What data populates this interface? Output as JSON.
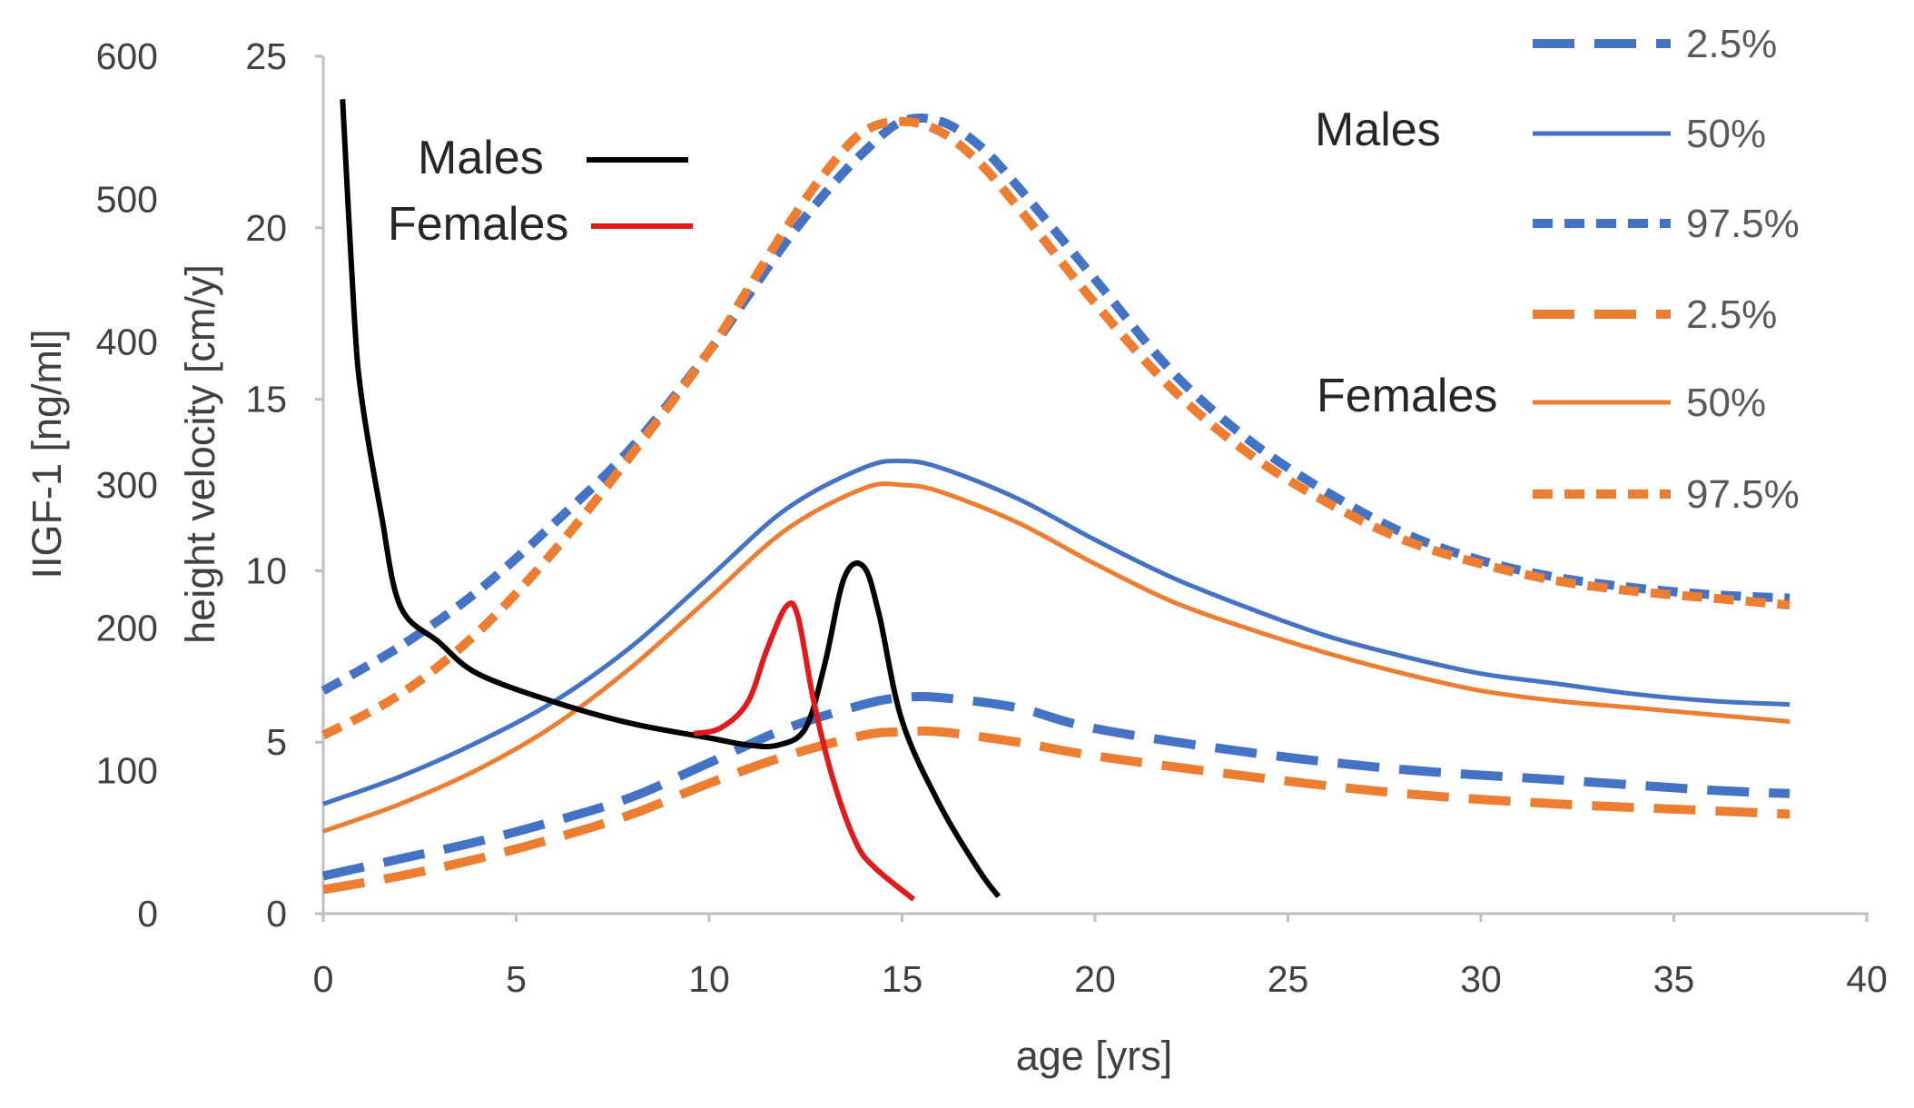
{
  "colors": {
    "blue": "#4472C4",
    "orange": "#ED7D31",
    "black": "#000000",
    "red": "#E31A1C",
    "axis": "#BFBFBF"
  },
  "chart_data": {
    "type": "line",
    "title": "",
    "xlabel": "age [yrs]",
    "ylabel_left": "IIGF-1 [ng/ml]",
    "ylabel_right": "height velocity [cm/y]",
    "xlim": [
      0,
      40
    ],
    "xticks": [
      "0",
      "5",
      "10",
      "15",
      "20",
      "25",
      "30",
      "35",
      "40"
    ],
    "ylim_left": [
      0,
      600
    ],
    "yticks_left": [
      "0",
      "100",
      "200",
      "300",
      "400",
      "500",
      "600"
    ],
    "ylim_right": [
      0,
      25
    ],
    "yticks_right": [
      "0",
      "5",
      "10",
      "15",
      "20",
      "25"
    ],
    "grid": false,
    "legend_igf": {
      "males": "Males",
      "females": "Females"
    },
    "legend_velocity": {
      "males": "Males",
      "females": "Females",
      "items": [
        {
          "label": "2.5%",
          "color": "blue",
          "style": "long-dash"
        },
        {
          "label": "50%",
          "color": "blue",
          "style": "solid"
        },
        {
          "label": "97.5%",
          "color": "blue",
          "style": "short-dash"
        },
        {
          "label": "2.5%",
          "color": "orange",
          "style": "long-dash"
        },
        {
          "label": "50%",
          "color": "orange",
          "style": "solid"
        },
        {
          "label": "97.5%",
          "color": "orange",
          "style": "short-dash"
        }
      ]
    },
    "series": [
      {
        "name": "Males 2.5%",
        "axis": "velocity",
        "color": "blue",
        "style": "long-dash",
        "x": [
          0,
          2,
          4,
          6,
          8,
          10,
          12,
          14,
          15,
          16,
          18,
          20,
          24,
          28,
          32,
          36,
          38
        ],
        "y": [
          1.1,
          1.6,
          2.1,
          2.7,
          3.4,
          4.4,
          5.4,
          6.1,
          6.3,
          6.3,
          6.0,
          5.4,
          4.7,
          4.2,
          3.9,
          3.6,
          3.5
        ]
      },
      {
        "name": "Males 50%",
        "axis": "velocity",
        "color": "blue",
        "style": "solid",
        "x": [
          0,
          2,
          4,
          6,
          8,
          10,
          12,
          14,
          15,
          16,
          18,
          20,
          22,
          24,
          26,
          28,
          30,
          32,
          34,
          36,
          38
        ],
        "y": [
          3.2,
          4.0,
          5.0,
          6.2,
          7.8,
          9.8,
          11.8,
          13.0,
          13.2,
          13.0,
          12.1,
          10.9,
          9.8,
          8.9,
          8.1,
          7.5,
          7.0,
          6.7,
          6.4,
          6.2,
          6.1
        ]
      },
      {
        "name": "Males 97.5%",
        "axis": "velocity",
        "color": "blue",
        "style": "short-dash",
        "x": [
          0,
          2,
          4,
          6,
          8,
          10,
          11,
          12,
          13,
          14,
          15,
          16,
          17,
          18,
          20,
          22,
          24,
          26,
          28,
          30,
          32,
          34,
          36,
          38
        ],
        "y": [
          6.5,
          7.8,
          9.4,
          11.4,
          13.6,
          16.4,
          18.0,
          19.6,
          21.0,
          22.2,
          23.1,
          23.1,
          22.4,
          21.2,
          18.5,
          15.8,
          13.8,
          12.3,
          11.1,
          10.3,
          9.8,
          9.5,
          9.3,
          9.2
        ]
      },
      {
        "name": "Females 2.5%",
        "axis": "velocity",
        "color": "orange",
        "style": "long-dash",
        "x": [
          0,
          2,
          4,
          6,
          8,
          10,
          12,
          14,
          15,
          16,
          18,
          20,
          24,
          28,
          32,
          36,
          38
        ],
        "y": [
          0.7,
          1.1,
          1.6,
          2.2,
          2.9,
          3.8,
          4.6,
          5.2,
          5.3,
          5.3,
          5.0,
          4.6,
          4.0,
          3.5,
          3.2,
          3.0,
          2.9
        ]
      },
      {
        "name": "Females 50%",
        "axis": "velocity",
        "color": "orange",
        "style": "solid",
        "x": [
          0,
          2,
          4,
          6,
          8,
          10,
          12,
          14,
          15,
          16,
          18,
          20,
          22,
          24,
          26,
          28,
          30,
          32,
          34,
          36,
          38
        ],
        "y": [
          2.4,
          3.2,
          4.2,
          5.5,
          7.2,
          9.2,
          11.2,
          12.4,
          12.5,
          12.3,
          11.4,
          10.2,
          9.1,
          8.3,
          7.6,
          7.0,
          6.5,
          6.2,
          6.0,
          5.8,
          5.6
        ]
      },
      {
        "name": "Females 97.5%",
        "axis": "velocity",
        "color": "orange",
        "style": "short-dash",
        "x": [
          0,
          2,
          4,
          6,
          8,
          10,
          11,
          12,
          13,
          14,
          15,
          16,
          17,
          18,
          20,
          22,
          24,
          26,
          28,
          30,
          32,
          34,
          36,
          38
        ],
        "y": [
          5.2,
          6.4,
          8.2,
          10.6,
          13.4,
          16.4,
          18.2,
          20.0,
          21.6,
          22.8,
          23.1,
          22.8,
          21.9,
          20.6,
          17.8,
          15.3,
          13.4,
          12.0,
          10.9,
          10.2,
          9.7,
          9.4,
          9.2,
          9.0
        ]
      },
      {
        "name": "IGF-1 Males",
        "axis": "igf",
        "color": "black",
        "style": "solid",
        "x": [
          0.5,
          0.8,
          1.0,
          1.5,
          2.0,
          3.0,
          4.0,
          6.0,
          8.0,
          10.0,
          11.0,
          11.8,
          12.5,
          13.0,
          13.5,
          14.0,
          14.4,
          15.0,
          16.0,
          17.0,
          17.5
        ],
        "y": [
          570,
          420,
          360,
          280,
          215,
          190,
          168,
          148,
          133,
          123,
          118,
          118,
          130,
          175,
          235,
          243,
          210,
          135,
          75,
          30,
          12
        ]
      },
      {
        "name": "IGF-1 Females",
        "axis": "igf",
        "color": "red",
        "style": "solid",
        "x": [
          9.6,
          10.3,
          11.0,
          11.5,
          12.0,
          12.3,
          12.7,
          13.2,
          13.8,
          14.3,
          15.3
        ],
        "y": [
          126,
          130,
          148,
          185,
          215,
          208,
          150,
          95,
          50,
          32,
          10
        ]
      }
    ]
  }
}
